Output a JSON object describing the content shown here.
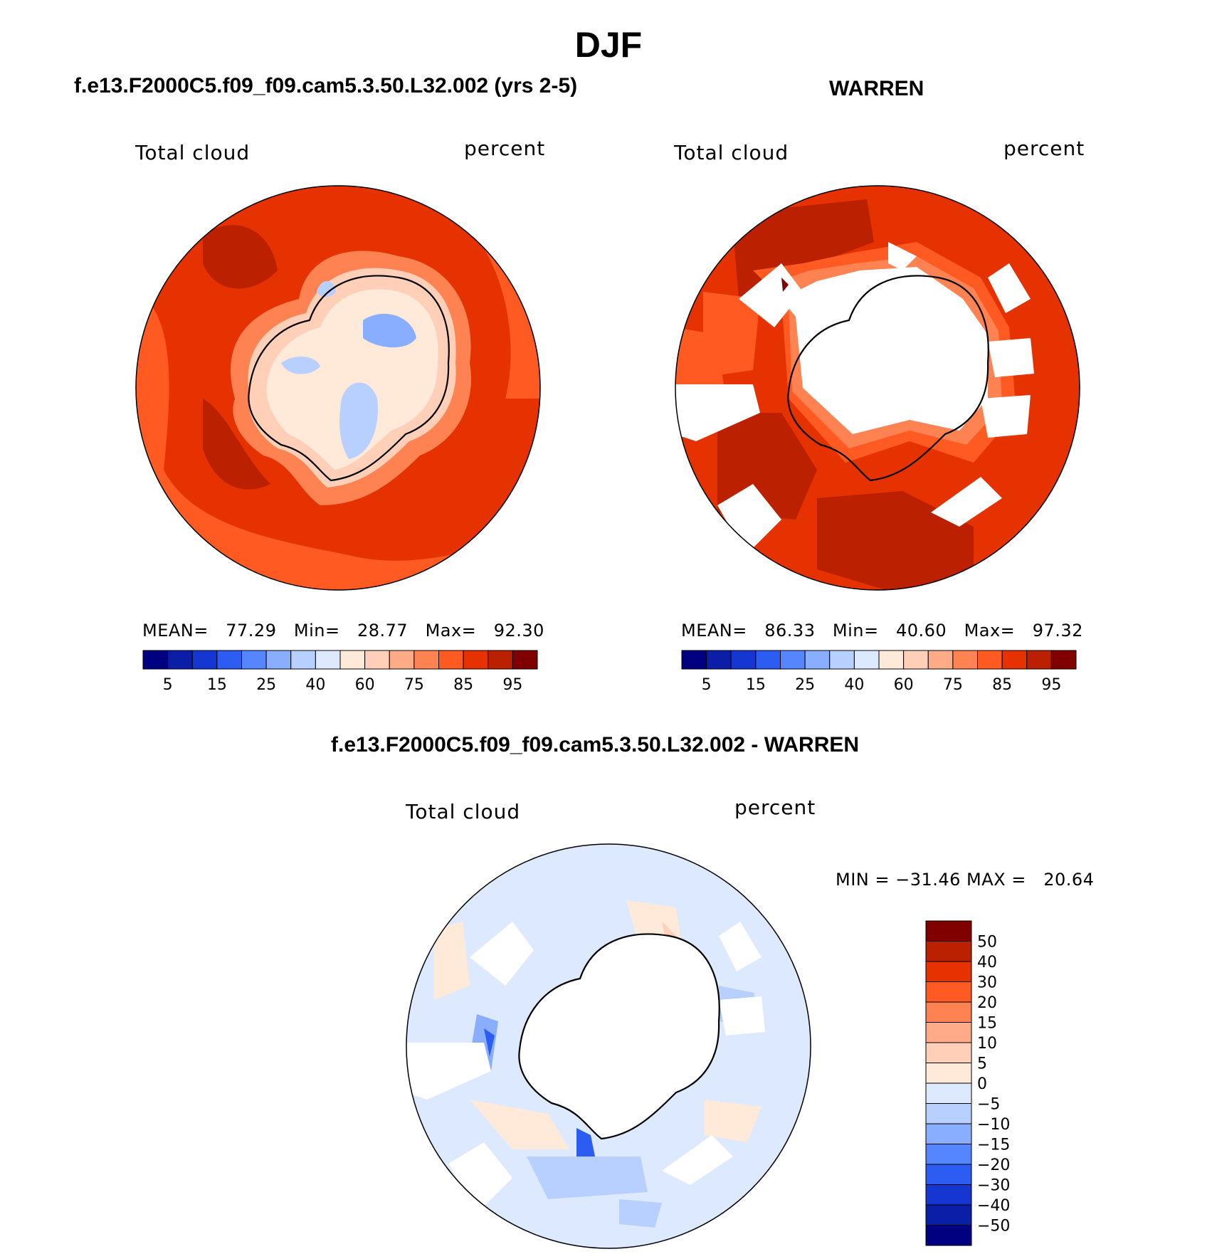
{
  "title": "DJF",
  "panels": [
    {
      "id": "model",
      "case": "f.e13.F2000C5.f09_f09.cam5.3.50.L32.002 (yrs 2-5)",
      "variable": "Total cloud",
      "units": "percent",
      "stats": {
        "mean": "77.29",
        "min": "28.77",
        "max": "92.30"
      },
      "stats_labels": {
        "mean": "MEAN=",
        "min": "Min=",
        "max": "Max="
      }
    },
    {
      "id": "obs",
      "case": "WARREN",
      "variable": "Total cloud",
      "units": "percent",
      "stats": {
        "mean": "86.33",
        "min": "40.60",
        "max": "97.32"
      },
      "stats_labels": {
        "mean": "MEAN=",
        "min": "Min=",
        "max": "Max="
      }
    },
    {
      "id": "diff",
      "case": "f.e13.F2000C5.f09_f09.cam5.3.50.L32.002 - WARREN",
      "variable": "Total cloud",
      "units": "percent",
      "stats_text": "MIN = −31.46 MAX =   20.64"
    }
  ],
  "colorbar_abs": {
    "tick_labels": [
      "5",
      "15",
      "25",
      "40",
      "60",
      "75",
      "85",
      "95"
    ],
    "colors": [
      "#000080",
      "#0a1ea8",
      "#1636d2",
      "#2d5cf2",
      "#5585ff",
      "#8aaeff",
      "#b8d0ff",
      "#dde9ff",
      "#ffeada",
      "#ffcfb8",
      "#ffab88",
      "#ff8252",
      "#ff5a22",
      "#e63200",
      "#bb2000",
      "#800000"
    ]
  },
  "colorbar_diff": {
    "tick_labels": [
      "50",
      "40",
      "30",
      "20",
      "15",
      "10",
      "5",
      "0",
      "−5",
      "−10",
      "−15",
      "−20",
      "−30",
      "−40",
      "−50"
    ],
    "colors": [
      "#800000",
      "#bb2000",
      "#e63200",
      "#ff5a22",
      "#ff8252",
      "#ffab88",
      "#ffcfb8",
      "#ffeada",
      "#dde9ff",
      "#b8d0ff",
      "#8aaeff",
      "#5585ff",
      "#2d5cf2",
      "#1636d2",
      "#0a1ea8",
      "#000080"
    ]
  }
}
